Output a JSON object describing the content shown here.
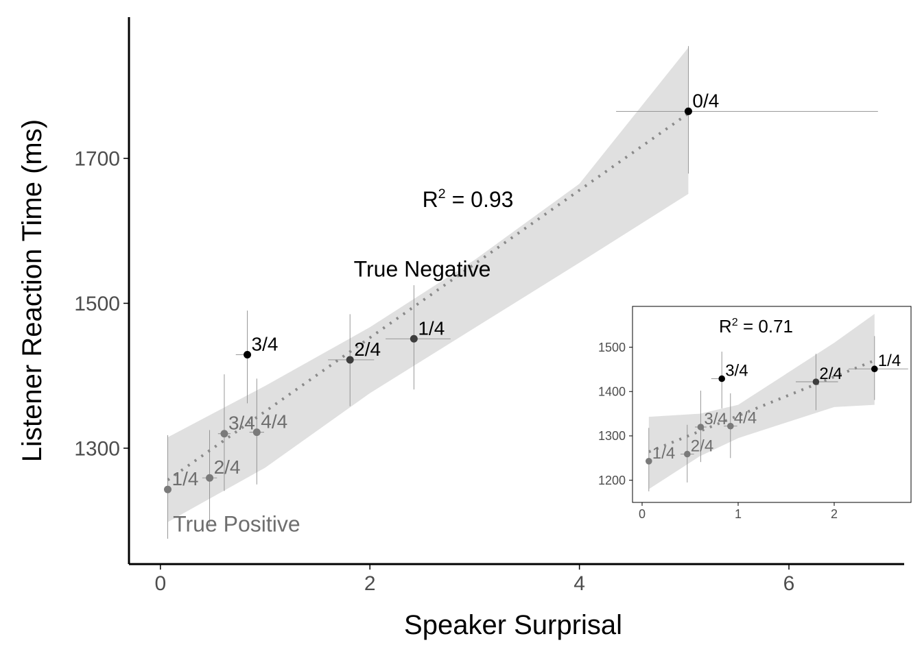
{
  "colors": {
    "black": "#000000",
    "dark_point": "#3d3d3d",
    "gray_point": "#7a7a7a",
    "gray_text": "#6e6e6e",
    "ribbon": "#e0e0e0",
    "errorbar": "#8c8c8c",
    "trend": "#8a8a8a",
    "axis_text": "#4d4d4d"
  },
  "chart_data": [
    {
      "id": "main",
      "type": "scatter",
      "xlabel": "Speaker Surprisal",
      "ylabel": "Listener Reaction Time (ms)",
      "xlim": [
        -0.3,
        7.1
      ],
      "ylim": [
        1140,
        1895
      ],
      "xticks": [
        0,
        2,
        4,
        6
      ],
      "yticks": [
        1300,
        1500,
        1700
      ],
      "trend": {
        "style": "dotted",
        "x": [
          0.07,
          5.04
        ],
        "y": [
          1256,
          1762
        ]
      },
      "ribbon": {
        "x": [
          0.07,
          1.0,
          2.0,
          3.0,
          4.0,
          5.04
        ],
        "upper": [
          1315,
          1386,
          1467,
          1560,
          1665,
          1853
        ],
        "lower": [
          1198,
          1273,
          1376,
          1466,
          1556,
          1651
        ]
      },
      "points": [
        {
          "label": "1/4",
          "group": "true_positive",
          "x": 0.07,
          "y": 1243,
          "xerr": [
            0.07,
            0.07
          ],
          "yerr": [
            1175,
            1318
          ]
        },
        {
          "label": "2/4",
          "group": "true_positive",
          "x": 0.47,
          "y": 1259,
          "xerr": [
            0.4,
            0.54
          ],
          "yerr": [
            1195,
            1325
          ]
        },
        {
          "label": "3/4",
          "group": "true_positive",
          "x": 0.61,
          "y": 1320,
          "xerr": [
            0.55,
            0.67
          ],
          "yerr": [
            1241,
            1402
          ]
        },
        {
          "label": "4/4",
          "group": "true_positive",
          "x": 0.92,
          "y": 1322,
          "xerr": [
            0.85,
            0.99
          ],
          "yerr": [
            1250,
            1396
          ]
        },
        {
          "label": "3/4",
          "group": "true_negative",
          "x": 0.83,
          "y": 1429,
          "xerr": [
            0.72,
            0.83
          ],
          "yerr": [
            1362,
            1490
          ]
        },
        {
          "label": "2/4",
          "group": "true_negative_mid",
          "x": 1.81,
          "y": 1422,
          "xerr": [
            1.6,
            2.04
          ],
          "yerr": [
            1358,
            1485
          ]
        },
        {
          "label": "1/4",
          "group": "true_negative_mid",
          "x": 2.42,
          "y": 1451,
          "xerr": [
            2.15,
            2.77
          ],
          "yerr": [
            1381,
            1525
          ]
        },
        {
          "label": "0/4",
          "group": "true_negative",
          "x": 5.04,
          "y": 1765,
          "xerr": [
            4.35,
            6.85
          ],
          "yerr": [
            1679,
            1855
          ]
        }
      ],
      "annotations": {
        "r2_prefix": "R",
        "r2_exp": "2",
        "r2_value": " = 0.93",
        "r2_at": [
          2.5,
          1633
        ],
        "true_negative": "True Negative",
        "true_negative_at": [
          2.5,
          1537
        ],
        "true_positive": "True Positive",
        "true_positive_at": [
          0.12,
          1185
        ]
      }
    },
    {
      "id": "inset",
      "type": "scatter",
      "xlim": [
        -0.1,
        2.8
      ],
      "ylim": [
        1150,
        1592
      ],
      "xticks": [
        0,
        1,
        2
      ],
      "yticks": [
        1200,
        1300,
        1400,
        1500
      ],
      "trend": {
        "style": "dotted",
        "x": [
          0.07,
          2.42
        ],
        "y": [
          1264,
          1470
        ]
      },
      "ribbon": {
        "x": [
          0.07,
          0.6,
          1.0,
          1.5,
          2.0,
          2.42
        ],
        "upper": [
          1343,
          1350,
          1370,
          1440,
          1510,
          1575
        ],
        "lower": [
          1180,
          1254,
          1295,
          1330,
          1365,
          1370
        ]
      },
      "points": [
        {
          "label": "1/4",
          "group": "true_positive",
          "x": 0.07,
          "y": 1243,
          "xerr": [
            0.07,
            0.07
          ],
          "yerr": [
            1175,
            1318
          ]
        },
        {
          "label": "2/4",
          "group": "true_positive",
          "x": 0.47,
          "y": 1259,
          "xerr": [
            0.4,
            0.54
          ],
          "yerr": [
            1195,
            1325
          ]
        },
        {
          "label": "3/4",
          "group": "true_positive",
          "x": 0.61,
          "y": 1320,
          "xerr": [
            0.55,
            0.67
          ],
          "yerr": [
            1241,
            1402
          ]
        },
        {
          "label": "4/4",
          "group": "true_positive",
          "x": 0.92,
          "y": 1322,
          "xerr": [
            0.85,
            0.99
          ],
          "yerr": [
            1250,
            1396
          ]
        },
        {
          "label": "3/4",
          "group": "true_negative",
          "x": 0.83,
          "y": 1429,
          "xerr": [
            0.72,
            0.83
          ],
          "yerr": [
            1362,
            1490
          ]
        },
        {
          "label": "2/4",
          "group": "true_negative_mid",
          "x": 1.81,
          "y": 1422,
          "xerr": [
            1.6,
            2.04
          ],
          "yerr": [
            1358,
            1485
          ]
        },
        {
          "label": "1/4",
          "group": "true_negative",
          "x": 2.42,
          "y": 1451,
          "xerr": [
            2.15,
            2.77
          ],
          "yerr": [
            1381,
            1525
          ]
        }
      ],
      "annotations": {
        "r2_prefix": "R",
        "r2_exp": "2",
        "r2_value": " = 0.71",
        "r2_at": [
          0.8,
          1533
        ]
      }
    }
  ]
}
